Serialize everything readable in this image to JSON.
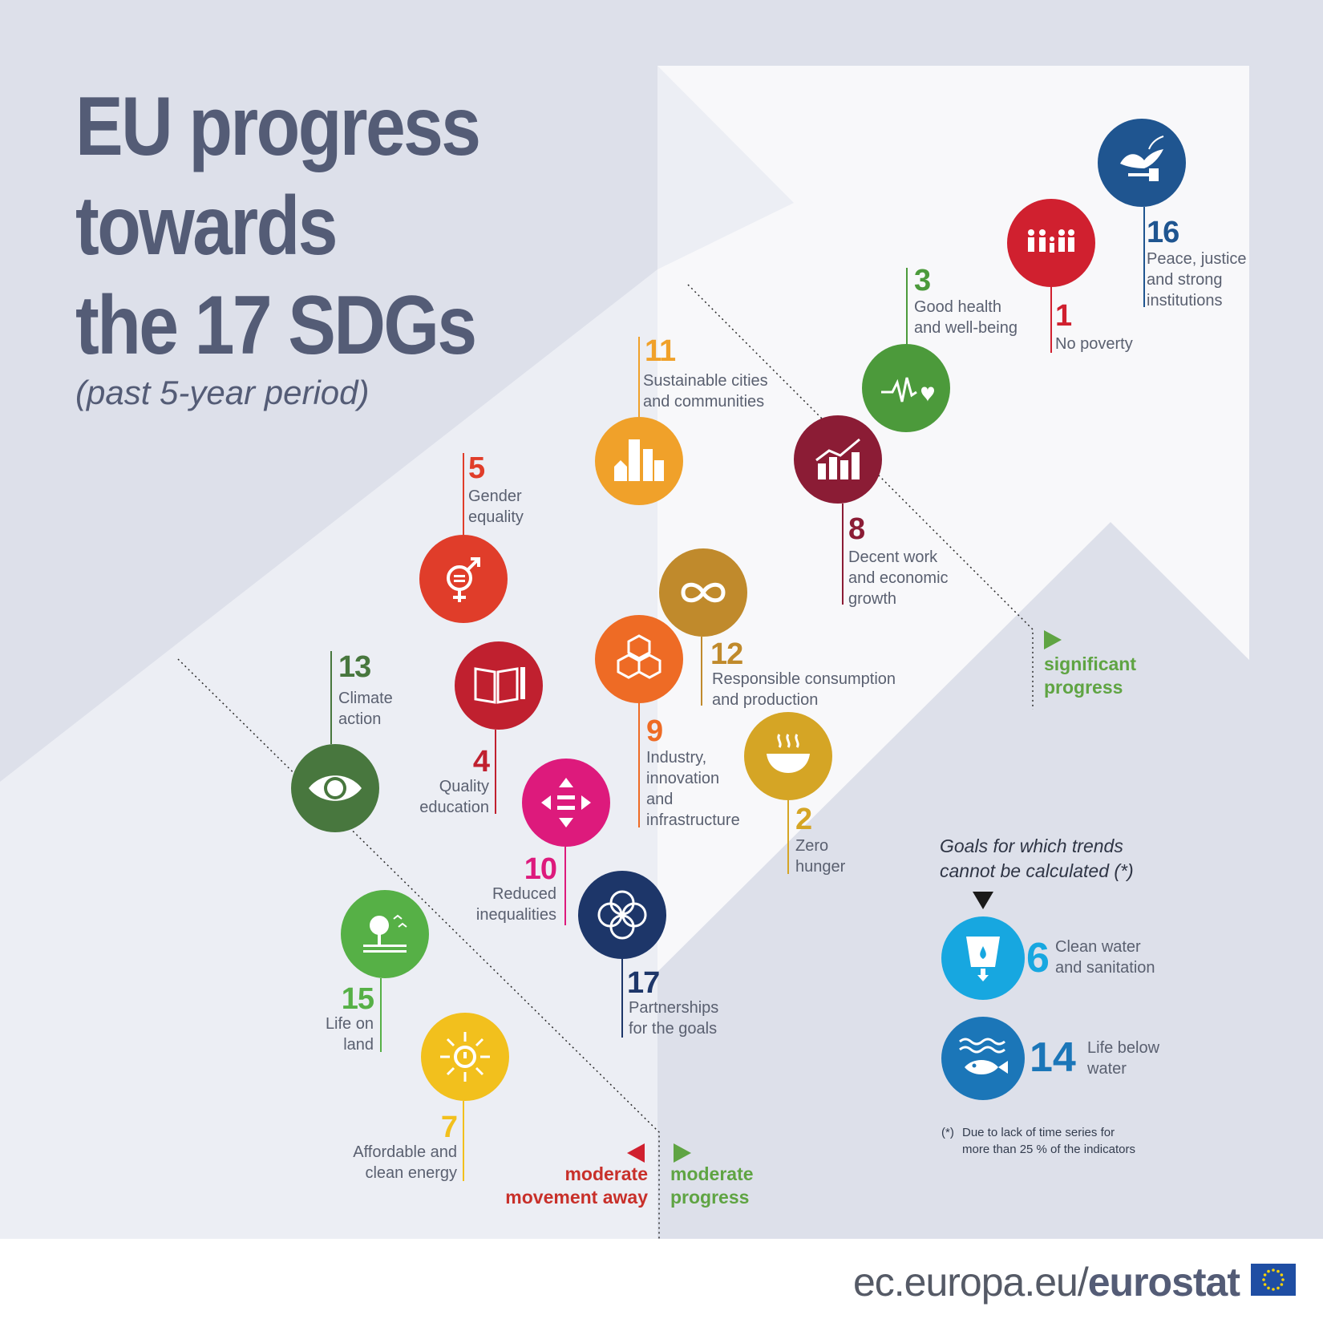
{
  "title": {
    "line1": "EU progress",
    "line2": "towards",
    "line3": "the 17 SDGs"
  },
  "subtitle": "(past 5-year period)",
  "goals": {
    "g16": {
      "number": "16",
      "label": [
        "Peace, justice",
        "and strong",
        "institutions"
      ],
      "color": "#1f5590",
      "icon": "dove-gavel-icon"
    },
    "g1": {
      "number": "1",
      "label": [
        "No poverty"
      ],
      "color": "#d0202f",
      "icon": "family-icon"
    },
    "g3": {
      "number": "3",
      "label": [
        "Good health",
        "and well-being"
      ],
      "color": "#4c9a3b",
      "icon": "heartbeat-icon"
    },
    "g11": {
      "number": "11",
      "label": [
        "Sustainable cities",
        "and communities"
      ],
      "color": "#f0a12a",
      "icon": "city-icon"
    },
    "g8": {
      "number": "8",
      "label": [
        "Decent work",
        "and economic",
        "growth"
      ],
      "color": "#8b1c35",
      "icon": "growth-chart-icon"
    },
    "g5": {
      "number": "5",
      "label": [
        "Gender",
        "equality"
      ],
      "color": "#e03d2a",
      "icon": "gender-icon"
    },
    "g12": {
      "number": "12",
      "label": [
        "Responsible consumption",
        "and production"
      ],
      "color": "#c08a2c",
      "icon": "infinity-icon"
    },
    "g9": {
      "number": "9",
      "label": [
        "Industry,",
        "innovation",
        "and",
        "infrastructure"
      ],
      "color": "#ee6b25",
      "icon": "cubes-icon"
    },
    "g4": {
      "number": "4",
      "label": [
        "Quality",
        "education"
      ],
      "color": "#c0202f",
      "icon": "book-icon"
    },
    "g2": {
      "number": "2",
      "label": [
        "Zero",
        "hunger"
      ],
      "color": "#d5a525",
      "icon": "bowl-icon"
    },
    "g13": {
      "number": "13",
      "label": [
        "Climate",
        "action"
      ],
      "color": "#48773e",
      "icon": "eye-globe-icon"
    },
    "g10": {
      "number": "10",
      "label": [
        "Reduced",
        "inequalities"
      ],
      "color": "#dd1a7c",
      "icon": "equality-arrows-icon"
    },
    "g17": {
      "number": "17",
      "label": [
        "Partnerships",
        "for the goals"
      ],
      "color": "#1d3669",
      "icon": "rings-icon"
    },
    "g15": {
      "number": "15",
      "label": [
        "Life on",
        "land"
      ],
      "color": "#56b046",
      "icon": "tree-icon"
    },
    "g7": {
      "number": "7",
      "label": [
        "Affordable and",
        "clean energy"
      ],
      "color": "#f2c01d",
      "icon": "sun-power-icon"
    }
  },
  "zones": {
    "significant": [
      "significant",
      "progress"
    ],
    "away": [
      "moderate",
      "movement away"
    ],
    "moderate": [
      "moderate",
      "progress"
    ],
    "colors": {
      "progress": "#5fa443",
      "away": "#c8302a"
    }
  },
  "not_calculable": {
    "heading": [
      "Goals for which trends",
      "cannot be calculated  (*)"
    ],
    "goals": [
      {
        "number": "6",
        "label": [
          "Clean water",
          "and sanitation"
        ],
        "color": "#17a7e0",
        "icon": "water-tap-icon"
      },
      {
        "number": "14",
        "label": [
          "Life below",
          "water"
        ],
        "color": "#1b76b8",
        "icon": "fish-icon"
      }
    ],
    "footnote_mark": "(*)",
    "footnote": [
      "Due to lack of time series for",
      "more than 25 % of the indicators"
    ]
  },
  "footer": {
    "url_prefix": "ec.europa.eu/",
    "url_brand": "eurostat"
  }
}
